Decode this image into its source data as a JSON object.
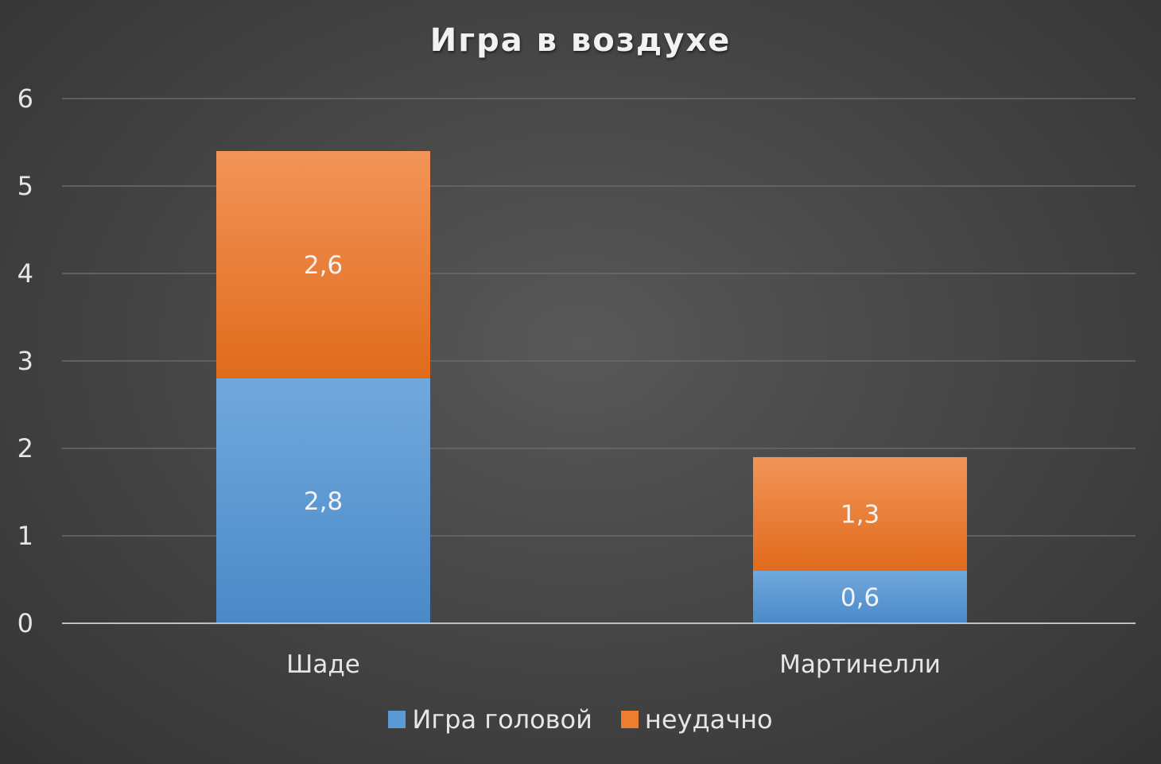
{
  "chart_data": {
    "type": "bar",
    "stacked": true,
    "title": "Игра в воздухе",
    "xlabel": "",
    "ylabel": "",
    "categories": [
      "Шаде",
      "Мартинелли"
    ],
    "series": [
      {
        "name": "Игра головой",
        "values": [
          2.8,
          0.6
        ],
        "labels": [
          "2,8",
          "0,6"
        ],
        "color": "#5b9bd5"
      },
      {
        "name": "неудачно",
        "values": [
          2.6,
          1.3
        ],
        "labels": [
          "2,6",
          "1,3"
        ],
        "color": "#ed7d31"
      }
    ],
    "ylim": [
      0,
      6
    ],
    "yticks": [
      0,
      1,
      2,
      3,
      4,
      5,
      6
    ],
    "ytick_labels": [
      "0",
      "1",
      "2",
      "3",
      "4",
      "5",
      "6"
    ],
    "grid": true,
    "legend_position": "bottom"
  },
  "colors": {
    "background": "#404040",
    "grid": "#6a6a6a",
    "axis": "#bfbfbf"
  }
}
